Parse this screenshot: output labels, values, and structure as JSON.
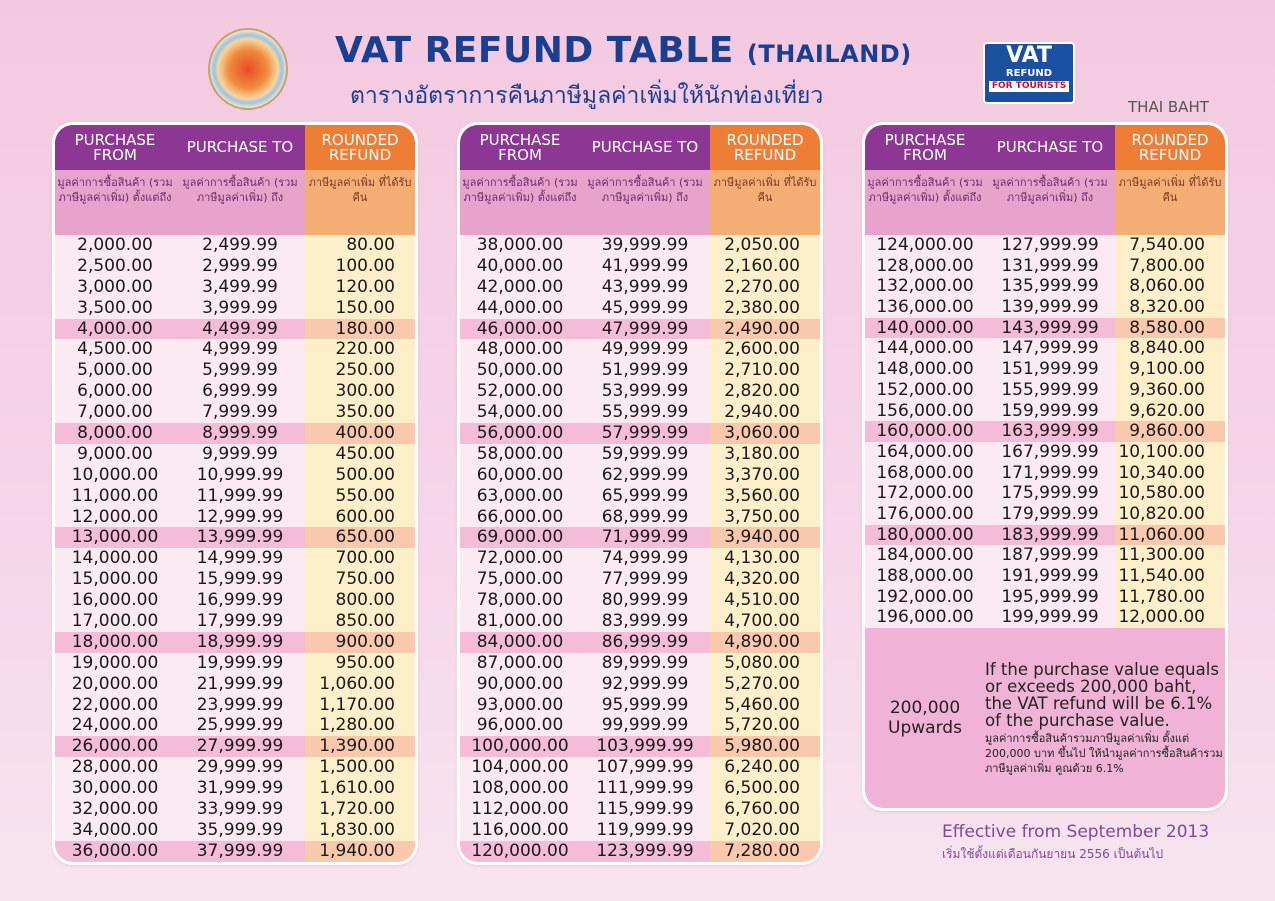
{
  "header": {
    "title": "VAT REFUND TABLE",
    "title_suffix": "(THAILAND)",
    "thai_title": "ตารางอัตราการคืนภาษีมูลค่าเพิ่มให้นักท่องเที่ยว",
    "currency": "THAI BAHT",
    "logo": {
      "line1": "VAT",
      "line2": "REFUND",
      "line3": "FOR TOURISTS"
    },
    "seal": "The Revenue Department seal"
  },
  "columns": {
    "from": "PURCHASE FROM",
    "to": "PURCHASE TO",
    "refund": "ROUNDED REFUND",
    "from_th": "มูลค่าการซื้อสินค้า (รวมภาษีมูลค่าเพิ่ม) ตั้งแต่ถึง",
    "to_th": "มูลค่าการซื้อสินค้า (รวมภาษีมูลค่าเพิ่ม) ถึง",
    "refund_th": "ภาษีมูลค่าเพิ่ม ที่ได้รับคืน"
  },
  "tables": [
    [
      [
        "2,000.00",
        "2,499.99",
        "80.00"
      ],
      [
        "2,500.00",
        "2,999.99",
        "100.00"
      ],
      [
        "3,000.00",
        "3,499.99",
        "120.00"
      ],
      [
        "3,500.00",
        "3,999.99",
        "150.00"
      ],
      [
        "4,000.00",
        "4,499.99",
        "180.00"
      ],
      [
        "4,500.00",
        "4,999.99",
        "220.00"
      ],
      [
        "5,000.00",
        "5,999.99",
        "250.00"
      ],
      [
        "6,000.00",
        "6,999.99",
        "300.00"
      ],
      [
        "7,000.00",
        "7,999.99",
        "350.00"
      ],
      [
        "8,000.00",
        "8,999.99",
        "400.00"
      ],
      [
        "9,000.00",
        "9,999.99",
        "450.00"
      ],
      [
        "10,000.00",
        "10,999.99",
        "500.00"
      ],
      [
        "11,000.00",
        "11,999.99",
        "550.00"
      ],
      [
        "12,000.00",
        "12,999.99",
        "600.00"
      ],
      [
        "13,000.00",
        "13,999.99",
        "650.00"
      ],
      [
        "14,000.00",
        "14,999.99",
        "700.00"
      ],
      [
        "15,000.00",
        "15,999.99",
        "750.00"
      ],
      [
        "16,000.00",
        "16,999.99",
        "800.00"
      ],
      [
        "17,000.00",
        "17,999.99",
        "850.00"
      ],
      [
        "18,000.00",
        "18,999.99",
        "900.00"
      ],
      [
        "19,000.00",
        "19,999.99",
        "950.00"
      ],
      [
        "20,000.00",
        "21,999.99",
        "1,060.00"
      ],
      [
        "22,000.00",
        "23,999.99",
        "1,170.00"
      ],
      [
        "24,000.00",
        "25,999.99",
        "1,280.00"
      ],
      [
        "26,000.00",
        "27,999.99",
        "1,390.00"
      ],
      [
        "28,000.00",
        "29,999.99",
        "1,500.00"
      ],
      [
        "30,000.00",
        "31,999.99",
        "1,610.00"
      ],
      [
        "32,000.00",
        "33,999.99",
        "1,720.00"
      ],
      [
        "34,000.00",
        "35,999.99",
        "1,830.00"
      ],
      [
        "36,000.00",
        "37,999.99",
        "1,940.00"
      ]
    ],
    [
      [
        "38,000.00",
        "39,999.99",
        "2,050.00"
      ],
      [
        "40,000.00",
        "41,999.99",
        "2,160.00"
      ],
      [
        "42,000.00",
        "43,999.99",
        "2,270.00"
      ],
      [
        "44,000.00",
        "45,999.99",
        "2,380.00"
      ],
      [
        "46,000.00",
        "47,999.99",
        "2,490.00"
      ],
      [
        "48,000.00",
        "49,999.99",
        "2,600.00"
      ],
      [
        "50,000.00",
        "51,999.99",
        "2,710.00"
      ],
      [
        "52,000.00",
        "53,999.99",
        "2,820.00"
      ],
      [
        "54,000.00",
        "55,999.99",
        "2,940.00"
      ],
      [
        "56,000.00",
        "57,999.99",
        "3,060.00"
      ],
      [
        "58,000.00",
        "59,999.99",
        "3,180.00"
      ],
      [
        "60,000.00",
        "62,999.99",
        "3,370.00"
      ],
      [
        "63,000.00",
        "65,999.99",
        "3,560.00"
      ],
      [
        "66,000.00",
        "68,999.99",
        "3,750.00"
      ],
      [
        "69,000.00",
        "71,999.99",
        "3,940.00"
      ],
      [
        "72,000.00",
        "74,999.99",
        "4,130.00"
      ],
      [
        "75,000.00",
        "77,999.99",
        "4,320.00"
      ],
      [
        "78,000.00",
        "80,999.99",
        "4,510.00"
      ],
      [
        "81,000.00",
        "83,999.99",
        "4,700.00"
      ],
      [
        "84,000.00",
        "86,999.99",
        "4,890.00"
      ],
      [
        "87,000.00",
        "89,999.99",
        "5,080.00"
      ],
      [
        "90,000.00",
        "92,999.99",
        "5,270.00"
      ],
      [
        "93,000.00",
        "95,999.99",
        "5,460.00"
      ],
      [
        "96,000.00",
        "99,999.99",
        "5,720.00"
      ],
      [
        "100,000.00",
        "103,999.99",
        "5,980.00"
      ],
      [
        "104,000.00",
        "107,999.99",
        "6,240.00"
      ],
      [
        "108,000.00",
        "111,999.99",
        "6,500.00"
      ],
      [
        "112,000.00",
        "115,999.99",
        "6,760.00"
      ],
      [
        "116,000.00",
        "119,999.99",
        "7,020.00"
      ],
      [
        "120,000.00",
        "123,999.99",
        "7,280.00"
      ]
    ],
    [
      [
        "124,000.00",
        "127,999.99",
        "7,540.00"
      ],
      [
        "128,000.00",
        "131,999.99",
        "7,800.00"
      ],
      [
        "132,000.00",
        "135,999.99",
        "8,060.00"
      ],
      [
        "136,000.00",
        "139,999.99",
        "8,320.00"
      ],
      [
        "140,000.00",
        "143,999.99",
        "8,580.00"
      ],
      [
        "144,000.00",
        "147,999.99",
        "8,840.00"
      ],
      [
        "148,000.00",
        "151,999.99",
        "9,100.00"
      ],
      [
        "152,000.00",
        "155,999.99",
        "9,360.00"
      ],
      [
        "156,000.00",
        "159,999.99",
        "9,620.00"
      ],
      [
        "160,000.00",
        "163,999.99",
        "9,860.00"
      ],
      [
        "164,000.00",
        "167,999.99",
        "10,100.00"
      ],
      [
        "168,000.00",
        "171,999.99",
        "10,340.00"
      ],
      [
        "172,000.00",
        "175,999.99",
        "10,580.00"
      ],
      [
        "176,000.00",
        "179,999.99",
        "10,820.00"
      ],
      [
        "180,000.00",
        "183,999.99",
        "11,060.00"
      ],
      [
        "184,000.00",
        "187,999.99",
        "11,300.00"
      ],
      [
        "188,000.00",
        "191,999.99",
        "11,540.00"
      ],
      [
        "192,000.00",
        "195,999.99",
        "11,780.00"
      ],
      [
        "196,000.00",
        "199,999.99",
        "12,000.00"
      ]
    ]
  ],
  "upwards": {
    "amount": "200,000",
    "label": "Upwards",
    "note": "If the purchase value equals or exceeds 200,000 baht, the VAT refund will be 6.1% of the purchase value.",
    "note_th": "มูลค่าการซื้อสินค้ารวมภาษีมูลค่าเพิ่ม ตั้งแต่ 200,000 บาท ขึ้นไป ให้นำมูลค่าการซื้อสินค้ารวมภาษีมูลค่าเพิ่ม คูณด้วย 6.1%"
  },
  "footer": {
    "effective": "Effective from September 2013",
    "effective_th": "เริ่มใช้ตั้งแต่เดือนกันยายน 2556 เป็นต้นไป"
  },
  "colors": {
    "header_purple": "#8d3795",
    "refund_orange": "#ee7e36",
    "title_blue": "#1b3f8f"
  }
}
